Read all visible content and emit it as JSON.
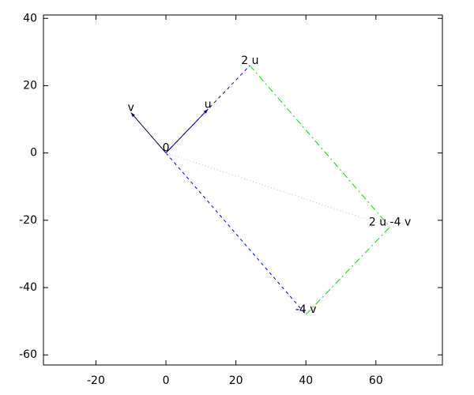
{
  "chart_data": {
    "type": "vector",
    "xlim": [
      -35,
      79
    ],
    "ylim": [
      -63,
      41
    ],
    "xticks": [
      -20,
      0,
      20,
      40,
      60
    ],
    "yticks": [
      -60,
      -40,
      -20,
      0,
      20,
      40
    ],
    "segments": [
      {
        "from": [
          0,
          0
        ],
        "to": [
          12,
          13
        ],
        "color": "#000040",
        "style": "solid",
        "arrow": true
      },
      {
        "from": [
          0,
          0
        ],
        "to": [
          -10,
          12
        ],
        "color": "#000040",
        "style": "solid",
        "arrow": true
      },
      {
        "from": [
          0,
          0
        ],
        "to": [
          24,
          26
        ],
        "color": "#0000ff",
        "style": "dashed",
        "arrow": false
      },
      {
        "from": [
          0,
          0
        ],
        "to": [
          40,
          -48
        ],
        "color": "#0000ff",
        "style": "dashed",
        "arrow": false
      },
      {
        "from": [
          24,
          26
        ],
        "to": [
          64,
          -22
        ],
        "color": "#00dd00",
        "style": "dashdot",
        "arrow": false
      },
      {
        "from": [
          40,
          -48
        ],
        "to": [
          64,
          -22
        ],
        "color": "#00dd00",
        "style": "dashdot",
        "arrow": false
      },
      {
        "from": [
          0,
          0
        ],
        "to": [
          64,
          -22
        ],
        "color": "#ffaaaa",
        "style": "dotted",
        "arrow": false
      }
    ],
    "labels": [
      {
        "text": "0",
        "at": [
          0,
          0
        ]
      },
      {
        "text": "u",
        "at": [
          12,
          13
        ]
      },
      {
        "text": "v",
        "at": [
          -10,
          12
        ]
      },
      {
        "text": "2 u",
        "at": [
          24,
          26
        ]
      },
      {
        "text": "-4 v",
        "at": [
          40,
          -48
        ]
      },
      {
        "text": "2 u -4 v",
        "at": [
          64,
          -22
        ]
      }
    ]
  }
}
